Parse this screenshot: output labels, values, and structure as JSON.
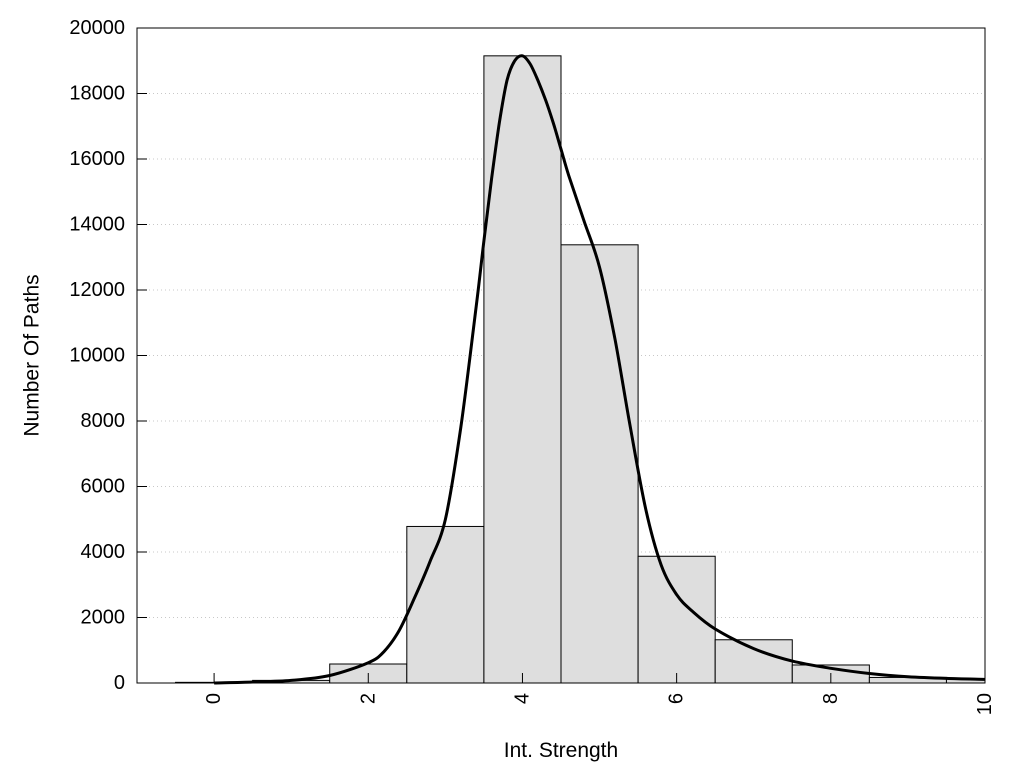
{
  "chart_data": {
    "type": "bar",
    "title": "",
    "xlabel": "Int. Strength",
    "ylabel": "Number Of Paths",
    "xlim": [
      -1,
      10
    ],
    "ylim": [
      0,
      20000
    ],
    "grid": true,
    "x_ticks": [
      0,
      2,
      4,
      6,
      8,
      10
    ],
    "y_ticks": [
      0,
      2000,
      4000,
      6000,
      8000,
      10000,
      12000,
      14000,
      16000,
      18000,
      20000
    ],
    "x_tick_labels": [
      "0",
      "2",
      "4",
      "6",
      "8",
      "10"
    ],
    "y_tick_labels": [
      "0",
      "2000",
      "4000",
      "6000",
      "8000",
      "10000",
      "12000",
      "14000",
      "16000",
      "18000",
      "20000"
    ],
    "bins": {
      "centers": [
        0,
        1,
        2,
        3,
        4,
        5,
        6,
        7,
        8,
        9,
        10
      ],
      "values": [
        20,
        80,
        580,
        4780,
        19150,
        13380,
        3870,
        1320,
        550,
        170,
        120
      ]
    },
    "fit_curve": {
      "x": [
        0,
        0.5,
        1,
        1.5,
        2,
        2.2,
        2.4,
        2.6,
        2.8,
        3,
        3.2,
        3.4,
        3.5,
        3.6,
        3.7,
        3.8,
        3.9,
        4,
        4.1,
        4.2,
        4.3,
        4.4,
        4.5,
        4.6,
        4.8,
        5,
        5.2,
        5.4,
        5.6,
        5.8,
        6,
        6.2,
        6.5,
        7,
        7.5,
        8,
        8.5,
        9,
        9.5,
        10
      ],
      "y": [
        0,
        30,
        80,
        230,
        620,
        950,
        1600,
        2600,
        3700,
        5000,
        7800,
        11500,
        13500,
        15400,
        17100,
        18400,
        19000,
        19150,
        18900,
        18400,
        17800,
        17100,
        16300,
        15500,
        14100,
        12700,
        10500,
        7800,
        5300,
        3600,
        2700,
        2200,
        1650,
        1050,
        670,
        450,
        290,
        190,
        140,
        110
      ]
    },
    "colors": {
      "bar_fill": "#dedede",
      "bar_stroke": "#000000",
      "curve": "#000000",
      "grid": "#c8c8c8"
    }
  }
}
